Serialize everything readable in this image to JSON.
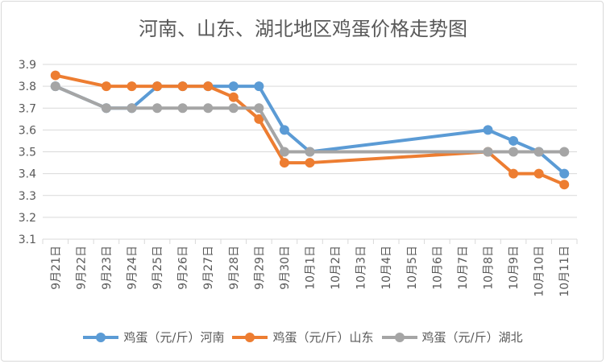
{
  "chart_data": {
    "type": "line",
    "title": "河南、山东、湖北地区鸡蛋价格走势图",
    "categories": [
      "9月21日",
      "9月22日",
      "9月23日",
      "9月24日",
      "9月25日",
      "9月26日",
      "9月27日",
      "9月28日",
      "9月29日",
      "9月30日",
      "10月1日",
      "10月2日",
      "10月3日",
      "10月4日",
      "10月5日",
      "10月6日",
      "10月7日",
      "10月8日",
      "10月9日",
      "10月10日",
      "10月11日"
    ],
    "ylim": [
      3.1,
      3.9
    ],
    "yticks": [
      "3.1",
      "3.2",
      "3.3",
      "3.4",
      "3.5",
      "3.6",
      "3.7",
      "3.8",
      "3.9"
    ],
    "grid": true,
    "legend_position": "bottom",
    "series": [
      {
        "name": "鸡蛋（元/斤）河南",
        "color": "#5b9bd5",
        "values": [
          3.8,
          null,
          3.7,
          3.7,
          3.8,
          3.8,
          3.8,
          3.8,
          3.8,
          3.6,
          3.5,
          null,
          null,
          null,
          null,
          null,
          null,
          3.6,
          3.55,
          3.5,
          3.4
        ]
      },
      {
        "name": "鸡蛋（元/斤）山东",
        "color": "#ed7d31",
        "values": [
          3.85,
          null,
          3.8,
          3.8,
          3.8,
          3.8,
          3.8,
          3.75,
          3.65,
          3.45,
          3.45,
          null,
          null,
          null,
          null,
          null,
          null,
          3.5,
          3.4,
          3.4,
          3.35
        ]
      },
      {
        "name": "鸡蛋（元/斤）湖北",
        "color": "#a5a5a5",
        "values": [
          3.8,
          null,
          3.7,
          3.7,
          3.7,
          3.7,
          3.7,
          3.7,
          3.7,
          3.5,
          3.5,
          null,
          null,
          null,
          null,
          null,
          null,
          3.5,
          3.5,
          3.5,
          3.5
        ]
      }
    ]
  }
}
